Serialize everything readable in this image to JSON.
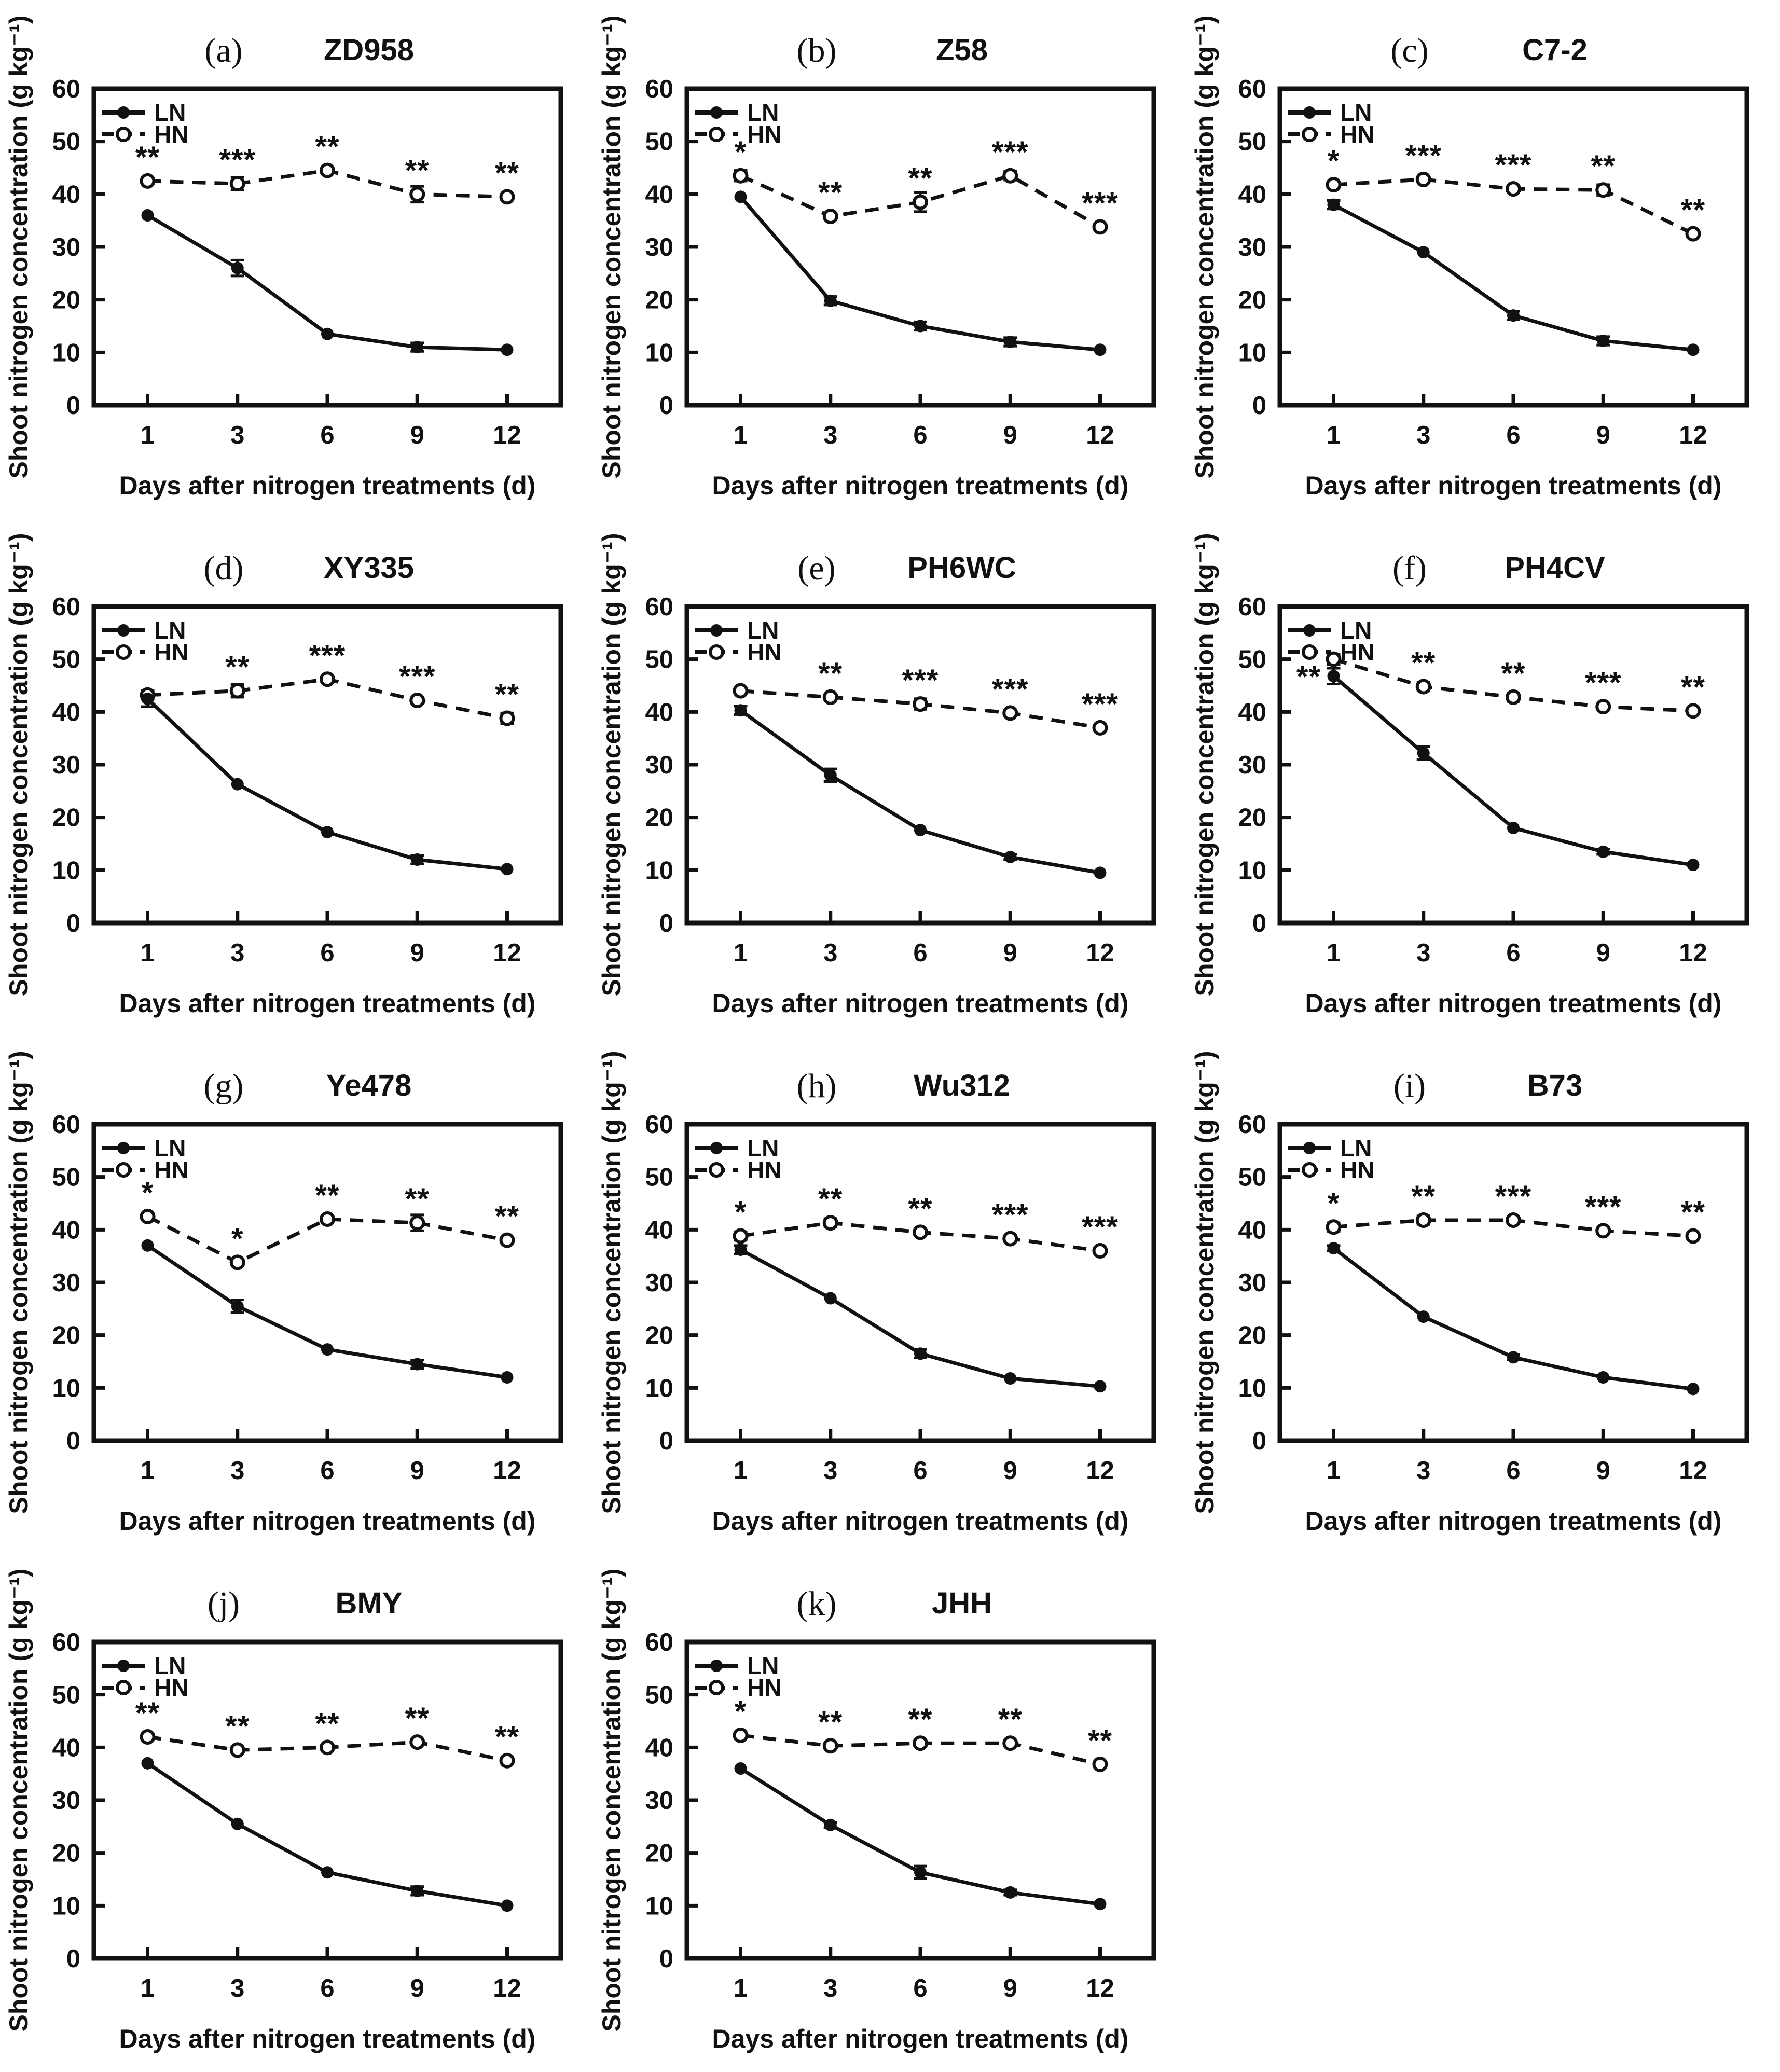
{
  "figure": {
    "background_color": "#ffffff",
    "ink_color": "#111111",
    "columns": 3,
    "panel_count": 11
  },
  "chart_common": {
    "type": "line",
    "x": [
      1,
      3,
      6,
      9,
      12
    ],
    "xlabel": "Days after nitrogen treatments (d)",
    "ylabel": "Shoot nitrogen concentration (g kg⁻¹)",
    "ylim": [
      0,
      60
    ],
    "yticks": [
      0,
      10,
      20,
      30,
      40,
      50,
      60
    ],
    "grid": false,
    "legend_position": "top-left-inside",
    "legend_entries": [
      "LN",
      "HN"
    ],
    "series_styles": {
      "LN": {
        "line": "solid",
        "marker": "filled-circle",
        "color": "#111111"
      },
      "HN": {
        "line": "dashed",
        "marker": "open-circle",
        "color": "#111111"
      }
    }
  },
  "chart_data": [
    {
      "panel_label": "(a)",
      "title": "ZD958",
      "series": [
        {
          "name": "LN",
          "values": [
            36,
            26,
            13.5,
            11,
            10.5
          ],
          "errors": [
            0,
            1.5,
            0,
            0.8,
            0
          ]
        },
        {
          "name": "HN",
          "values": [
            42.5,
            42,
            44.5,
            40,
            39.5
          ],
          "errors": [
            0,
            1.2,
            0,
            1.5,
            0
          ]
        }
      ],
      "significance": [
        "**",
        "***",
        "**",
        "**",
        "**"
      ]
    },
    {
      "panel_label": "(b)",
      "title": "Z58",
      "series": [
        {
          "name": "LN",
          "values": [
            39.5,
            19.8,
            15,
            12,
            10.5
          ],
          "errors": [
            0,
            0.8,
            0.8,
            0.8,
            0
          ]
        },
        {
          "name": "HN",
          "values": [
            43.5,
            35.8,
            38.5,
            43.5,
            33.8
          ],
          "errors": [
            1,
            0,
            1.8,
            0.8,
            0
          ]
        }
      ],
      "significance": [
        "*",
        "**",
        "**",
        "***",
        "***"
      ]
    },
    {
      "panel_label": "(c)",
      "title": "C7-2",
      "series": [
        {
          "name": "LN",
          "values": [
            38,
            29,
            17,
            12.2,
            10.5
          ],
          "errors": [
            0.8,
            0,
            0.8,
            0.8,
            0
          ]
        },
        {
          "name": "HN",
          "values": [
            41.8,
            42.8,
            41,
            40.8,
            32.5
          ],
          "errors": [
            0,
            0.5,
            0,
            1,
            0
          ]
        }
      ],
      "significance": [
        "*",
        "***",
        "***",
        "**",
        "**"
      ]
    },
    {
      "panel_label": "(d)",
      "title": "XY335",
      "series": [
        {
          "name": "LN",
          "values": [
            42.5,
            26.3,
            17.2,
            12,
            10.2
          ],
          "errors": [
            1.5,
            0,
            0,
            0.8,
            0
          ]
        },
        {
          "name": "HN",
          "values": [
            43.2,
            44,
            46.2,
            42.2,
            38.8
          ],
          "errors": [
            0.8,
            1.2,
            0,
            0,
            1
          ]
        }
      ],
      "significance": [
        "",
        "**",
        "***",
        "***",
        "**"
      ]
    },
    {
      "panel_label": "(e)",
      "title": "PH6WC",
      "series": [
        {
          "name": "LN",
          "values": [
            40.3,
            28,
            17.6,
            12.5,
            9.5
          ],
          "errors": [
            0.8,
            1.2,
            0,
            0.5,
            0
          ]
        },
        {
          "name": "HN",
          "values": [
            44,
            42.8,
            41.5,
            39.8,
            37
          ],
          "errors": [
            0,
            0,
            1,
            0.5,
            0
          ]
        }
      ],
      "significance": [
        "",
        "**",
        "***",
        "***",
        "***"
      ]
    },
    {
      "panel_label": "(f)",
      "title": "PH4CV",
      "series": [
        {
          "name": "LN",
          "values": [
            46.8,
            32.2,
            18,
            13.5,
            11
          ],
          "errors": [
            1.5,
            1.2,
            0,
            0.5,
            0
          ]
        },
        {
          "name": "HN",
          "values": [
            50,
            44.8,
            42.8,
            41,
            40.2
          ],
          "errors": [
            1,
            0.8,
            0.8,
            0,
            0.5
          ]
        }
      ],
      "significance": [
        "**",
        "**",
        "**",
        "***",
        "**"
      ],
      "sig_dx": [
        -48,
        0,
        0,
        0,
        0
      ],
      "sig_dy": [
        80,
        0,
        0,
        0,
        0
      ]
    },
    {
      "panel_label": "(g)",
      "title": "Ye478",
      "series": [
        {
          "name": "LN",
          "values": [
            37,
            25.5,
            17.3,
            14.5,
            12
          ],
          "errors": [
            0,
            1.2,
            0,
            0.8,
            0
          ]
        },
        {
          "name": "HN",
          "values": [
            42.5,
            33.8,
            42,
            41.3,
            38
          ],
          "errors": [
            0,
            0,
            0,
            1.5,
            0
          ]
        }
      ],
      "significance": [
        "*",
        "*",
        "**",
        "**",
        "**"
      ]
    },
    {
      "panel_label": "(h)",
      "title": "Wu312",
      "series": [
        {
          "name": "LN",
          "values": [
            36.2,
            27,
            16.5,
            11.8,
            10.3
          ],
          "errors": [
            0.8,
            0,
            0.8,
            0,
            0
          ]
        },
        {
          "name": "HN",
          "values": [
            38.8,
            41.3,
            39.5,
            38.3,
            36
          ],
          "errors": [
            0.8,
            0.8,
            0,
            0.5,
            0
          ]
        }
      ],
      "significance": [
        "*",
        "**",
        "**",
        "***",
        "***"
      ]
    },
    {
      "panel_label": "(i)",
      "title": "B73",
      "series": [
        {
          "name": "LN",
          "values": [
            36.5,
            23.5,
            15.8,
            12,
            9.8
          ],
          "errors": [
            0.5,
            0,
            0.5,
            0,
            0
          ]
        },
        {
          "name": "HN",
          "values": [
            40.5,
            41.8,
            41.8,
            39.8,
            38.8
          ],
          "errors": [
            0.8,
            0.8,
            0,
            0.5,
            0.5
          ]
        }
      ],
      "significance": [
        "*",
        "**",
        "***",
        "***",
        "**"
      ]
    },
    {
      "panel_label": "(j)",
      "title": "BMY",
      "series": [
        {
          "name": "LN",
          "values": [
            37,
            25.5,
            16.3,
            12.8,
            10
          ],
          "errors": [
            0,
            0,
            0,
            0.8,
            0
          ]
        },
        {
          "name": "HN",
          "values": [
            42,
            39.5,
            40,
            41,
            37.5
          ],
          "errors": [
            0.5,
            0.5,
            0,
            0.5,
            0.5
          ]
        }
      ],
      "significance": [
        "**",
        "**",
        "**",
        "**",
        "**"
      ]
    },
    {
      "panel_label": "(k)",
      "title": "JHH",
      "series": [
        {
          "name": "LN",
          "values": [
            36,
            25.3,
            16.3,
            12.5,
            10.3
          ],
          "errors": [
            0,
            0.5,
            1.2,
            0.5,
            0
          ]
        },
        {
          "name": "HN",
          "values": [
            42.3,
            40.3,
            40.8,
            40.8,
            36.8
          ],
          "errors": [
            0.5,
            0.5,
            0.5,
            0.5,
            0
          ]
        }
      ],
      "significance": [
        "*",
        "**",
        "**",
        "**",
        "**"
      ]
    }
  ]
}
